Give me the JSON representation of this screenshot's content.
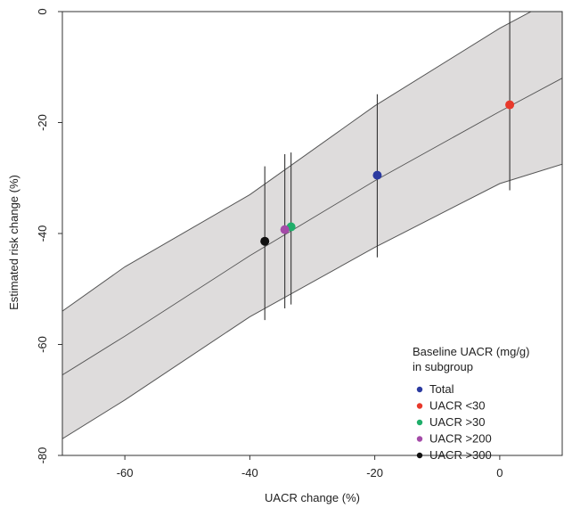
{
  "chart_data": {
    "type": "line",
    "xlabel": "UACR change (%)",
    "ylabel": "Estimated risk change (%)",
    "xlim": [
      -70,
      10
    ],
    "ylim": [
      -80,
      0
    ],
    "x_ticks": [
      -60,
      -40,
      -20,
      0
    ],
    "y_ticks": [
      0,
      -20,
      -40,
      -60,
      -80
    ],
    "grid": false,
    "band_color": "#dedcdc",
    "line_color": "#555555",
    "regression": {
      "x": [
        -70,
        -60,
        -40,
        -20,
        0,
        10
      ],
      "y": [
        -65.5,
        -58.5,
        -44,
        -30.5,
        -18,
        -12
      ],
      "lower": [
        -77,
        -70,
        -55,
        -42.5,
        -31,
        -27.5
      ],
      "upper": [
        -54,
        -46,
        -33,
        -17,
        -3,
        3
      ]
    },
    "subgroups": [
      {
        "label": "Total",
        "x": -19.6,
        "y": -29.5,
        "lower": -44.3,
        "upper": -14.9,
        "color": "#2b3aa0"
      },
      {
        "label": "UACR <30",
        "x": 1.6,
        "y": -16.8,
        "lower": -32.2,
        "upper": 0,
        "color": "#e8392b"
      },
      {
        "label": "UACR >30",
        "x": -33.4,
        "y": -38.8,
        "lower": -52.8,
        "upper": -25.4,
        "color": "#1fae6a"
      },
      {
        "label": "UACR >200",
        "x": -34.4,
        "y": -39.3,
        "lower": -53.5,
        "upper": -25.7,
        "color": "#a44ba8"
      },
      {
        "label": "UACR >300",
        "x": -37.6,
        "y": -41.4,
        "lower": -55.6,
        "upper": -27.9,
        "color": "#111111"
      }
    ],
    "legend": {
      "title_line1": "Baseline UACR (mg/g)",
      "title_line2": "in subgroup",
      "placement": "bottom-right"
    }
  }
}
